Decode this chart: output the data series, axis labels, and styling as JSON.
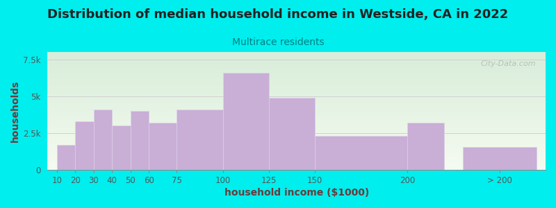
{
  "title": "Distribution of median household income in Westside, CA in 2022",
  "subtitle": "Multirace residents",
  "xlabel": "household income ($1000)",
  "ylabel": "households",
  "bar_color": "#c9aed6",
  "bar_edgecolor": "#ddd0e8",
  "background_color": "#00eeee",
  "plot_bg_color": "#eef5ec",
  "categories": [
    "10",
    "20",
    "30",
    "40",
    "50",
    "60",
    "75",
    "100",
    "125",
    "150",
    "200",
    "> 200"
  ],
  "values": [
    1700,
    3300,
    4100,
    3000,
    4000,
    3200,
    4100,
    6600,
    4900,
    2300,
    3200,
    1550
  ],
  "ylim": [
    0,
    8000
  ],
  "yticks": [
    0,
    2500,
    5000,
    7500
  ],
  "ytick_labels": [
    "0",
    "2.5k",
    "5k",
    "7.5k"
  ],
  "title_fontsize": 13,
  "subtitle_fontsize": 10,
  "axis_label_fontsize": 10,
  "tick_fontsize": 8.5,
  "watermark": "City-Data.com",
  "x_left": [
    10,
    20,
    30,
    40,
    50,
    60,
    75,
    100,
    125,
    150,
    200,
    230
  ],
  "x_right": [
    20,
    30,
    40,
    50,
    60,
    75,
    100,
    125,
    150,
    200,
    220,
    270
  ]
}
